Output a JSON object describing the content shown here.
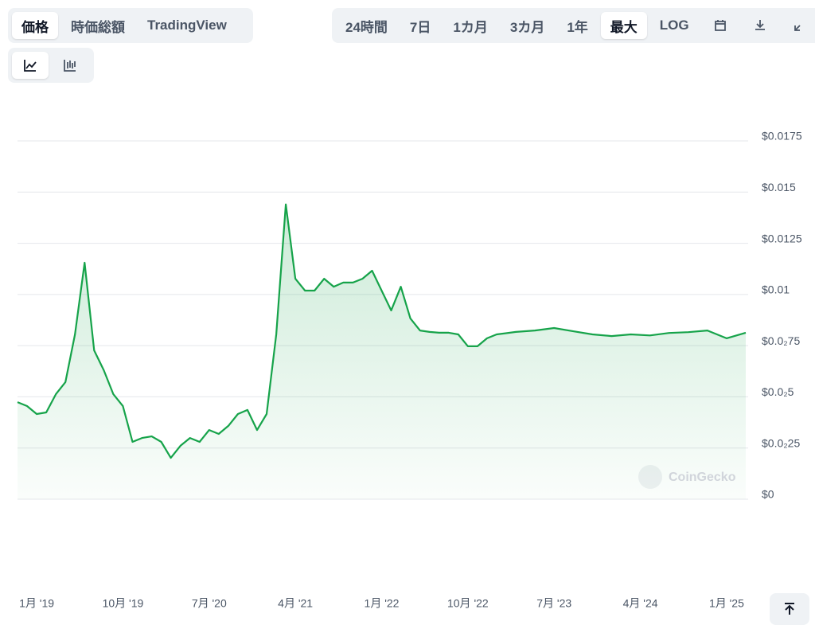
{
  "tabs": {
    "metric": [
      "価格",
      "時価総額",
      "TradingView"
    ],
    "metric_active": 0,
    "range": [
      "24時間",
      "7日",
      "1カ月",
      "3カ月",
      "1年",
      "最大",
      "LOG"
    ],
    "range_active": 5
  },
  "watermark": "CoinGecko",
  "chart_data": {
    "type": "line",
    "color": "#16a34a",
    "grid": true,
    "x": [
      "2018-11",
      "2018-12",
      "2019-01",
      "2019-02",
      "2019-03",
      "2019-04",
      "2019-05",
      "2019-06",
      "2019-07",
      "2019-08",
      "2019-09",
      "2019-10",
      "2019-11",
      "2019-12",
      "2020-01",
      "2020-02",
      "2020-03",
      "2020-04",
      "2020-05",
      "2020-06",
      "2020-07",
      "2020-08",
      "2020-09",
      "2020-10",
      "2020-11",
      "2020-12",
      "2021-01",
      "2021-02",
      "2021-03",
      "2021-04",
      "2021-05",
      "2021-06",
      "2021-07",
      "2021-08",
      "2021-09",
      "2021-10",
      "2021-11",
      "2021-12",
      "2022-01",
      "2022-02",
      "2022-03",
      "2022-04",
      "2022-05",
      "2022-06",
      "2022-07",
      "2022-08",
      "2022-09",
      "2022-10",
      "2022-11",
      "2022-12",
      "2023-01",
      "2023-03",
      "2023-05",
      "2023-07",
      "2023-09",
      "2023-11",
      "2024-01",
      "2024-03",
      "2024-05",
      "2024-07",
      "2024-09",
      "2024-11",
      "2025-01",
      "2025-03"
    ],
    "values": [
      0.00474,
      0.00455,
      0.00416,
      0.00424,
      0.00513,
      0.00572,
      0.00805,
      0.01155,
      0.00727,
      0.0063,
      0.00513,
      0.00455,
      0.0028,
      0.00299,
      0.00307,
      0.0028,
      0.00202,
      0.00261,
      0.00299,
      0.0028,
      0.00338,
      0.00319,
      0.00358,
      0.00416,
      0.00436,
      0.00338,
      0.00416,
      0.00805,
      0.0144,
      0.01077,
      0.01019,
      0.01019,
      0.01077,
      0.01038,
      0.01058,
      0.01058,
      0.01077,
      0.01116,
      0.01019,
      0.00922,
      0.01038,
      0.00883,
      0.00824,
      0.00817,
      0.00813,
      0.00813,
      0.00805,
      0.00747,
      0.00747,
      0.00786,
      0.00805,
      0.00817,
      0.00824,
      0.00836,
      0.0082,
      0.00805,
      0.00797,
      0.00805,
      0.008,
      0.00812,
      0.00816,
      0.00824,
      0.00786,
      0.00813
    ],
    "xlim": [
      "2018-11",
      "2025-03"
    ],
    "xticks": [
      {
        "value": "2019-01",
        "label": "1月 '19"
      },
      {
        "value": "2019-10",
        "label": "10月 '19"
      },
      {
        "value": "2020-07",
        "label": "7月 '20"
      },
      {
        "value": "2021-04",
        "label": "4月 '21"
      },
      {
        "value": "2022-01",
        "label": "1月 '22"
      },
      {
        "value": "2022-10",
        "label": "10月 '22"
      },
      {
        "value": "2023-07",
        "label": "7月 '23"
      },
      {
        "value": "2024-04",
        "label": "4月 '24"
      },
      {
        "value": "2025-01",
        "label": "1月 '25"
      }
    ],
    "ylim": [
      0,
      0.0175
    ],
    "yticks": [
      {
        "value": 0,
        "label": "$0"
      },
      {
        "value": 0.0025,
        "label": "$0.0₂25"
      },
      {
        "value": 0.005,
        "label": "$0.0₂5"
      },
      {
        "value": 0.0075,
        "label": "$0.0₂75"
      },
      {
        "value": 0.01,
        "label": "$0.01"
      },
      {
        "value": 0.0125,
        "label": "$0.0125"
      },
      {
        "value": 0.015,
        "label": "$0.015"
      },
      {
        "value": 0.0175,
        "label": "$0.0175"
      }
    ]
  }
}
